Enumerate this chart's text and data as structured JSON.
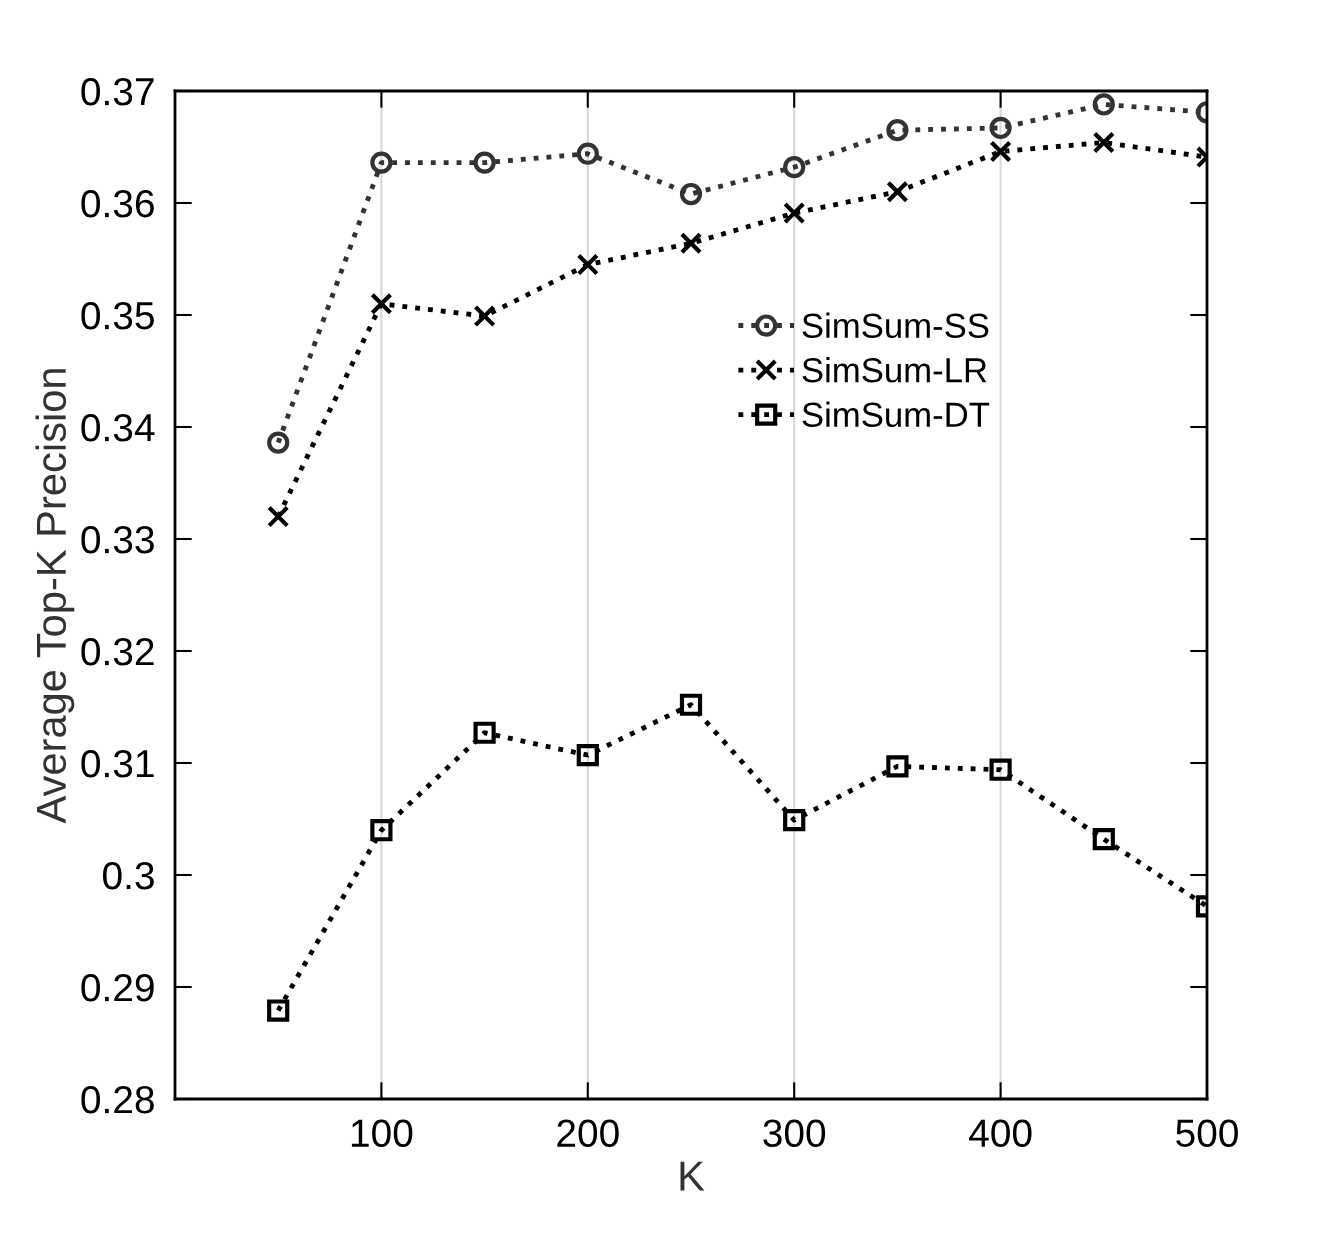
{
  "chart_data": {
    "type": "line",
    "xlabel": "K",
    "ylabel": "Average Top-K Precision",
    "x": [
      50,
      100,
      150,
      200,
      250,
      300,
      350,
      400,
      450,
      500
    ],
    "series": [
      {
        "name": "SimSum-SS",
        "color": "#333333",
        "marker": "circle",
        "values": [
          0.3386,
          0.3636,
          0.3636,
          0.3644,
          0.3608,
          0.3632,
          0.3665,
          0.3667,
          0.3688,
          0.3681
        ]
      },
      {
        "name": "SimSum-LR",
        "color": "#000000",
        "marker": "cross",
        "values": [
          0.332,
          0.351,
          0.3499,
          0.3545,
          0.3564,
          0.3591,
          0.361,
          0.3646,
          0.3654,
          0.3641
        ]
      },
      {
        "name": "SimSum-DT",
        "color": "#000000",
        "marker": "square",
        "values": [
          0.2879,
          0.304,
          0.3127,
          0.3107,
          0.3152,
          0.3049,
          0.3097,
          0.3094,
          0.3032,
          0.2972
        ]
      }
    ],
    "line_style": "dotted",
    "grid": "x",
    "legend": "right",
    "xlim": [
      0,
      500
    ],
    "xticks": [
      100,
      200,
      300,
      400,
      500
    ],
    "ylim": [
      0.28,
      0.37
    ],
    "yticks": [
      0.28,
      0.29,
      0.3,
      0.31,
      0.32,
      0.33,
      0.34,
      0.35,
      0.36,
      0.37
    ]
  }
}
